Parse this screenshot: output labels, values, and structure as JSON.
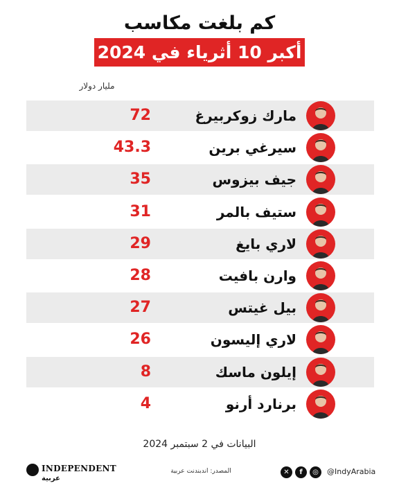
{
  "header": {
    "line1": "كم بلغت مكاسب",
    "line2": "أكبر 10 أثرياء في 2024 ؟"
  },
  "colors": {
    "accent": "#e02525",
    "row_shade": "#ebebeb"
  },
  "chart_data": {
    "type": "table",
    "unit_label": "مليار دولار",
    "rows": [
      {
        "name": "مارك زوكربيرغ",
        "value": "72",
        "avatar": "person-avatar-icon"
      },
      {
        "name": "سيرغي برين",
        "value": "43.3",
        "avatar": "person-avatar-icon"
      },
      {
        "name": "جيف بيزوس",
        "value": "35",
        "avatar": "person-avatar-icon"
      },
      {
        "name": "ستيف بالمر",
        "value": "31",
        "avatar": "person-avatar-icon"
      },
      {
        "name": "لاري بايغ",
        "value": "29",
        "avatar": "person-avatar-icon"
      },
      {
        "name": "وارن بافيت",
        "value": "28",
        "avatar": "person-avatar-icon"
      },
      {
        "name": "بيل غيتس",
        "value": "27",
        "avatar": "person-avatar-icon"
      },
      {
        "name": "لاري إليسون",
        "value": "26",
        "avatar": "person-avatar-icon"
      },
      {
        "name": "إيلون ماسك",
        "value": "8",
        "avatar": "person-avatar-icon"
      },
      {
        "name": "برنارد أرنو",
        "value": "4",
        "avatar": "person-avatar-icon"
      }
    ]
  },
  "footer": {
    "date": "البيانات في 2 سبتمبر 2024",
    "source": "المصدر: اندبندنت عربية",
    "brand": "INDEPENDENT",
    "brand_sub": "عربية",
    "handle": "@IndyArabia",
    "social_icons": [
      "x-icon",
      "facebook-icon",
      "instagram-icon"
    ]
  }
}
